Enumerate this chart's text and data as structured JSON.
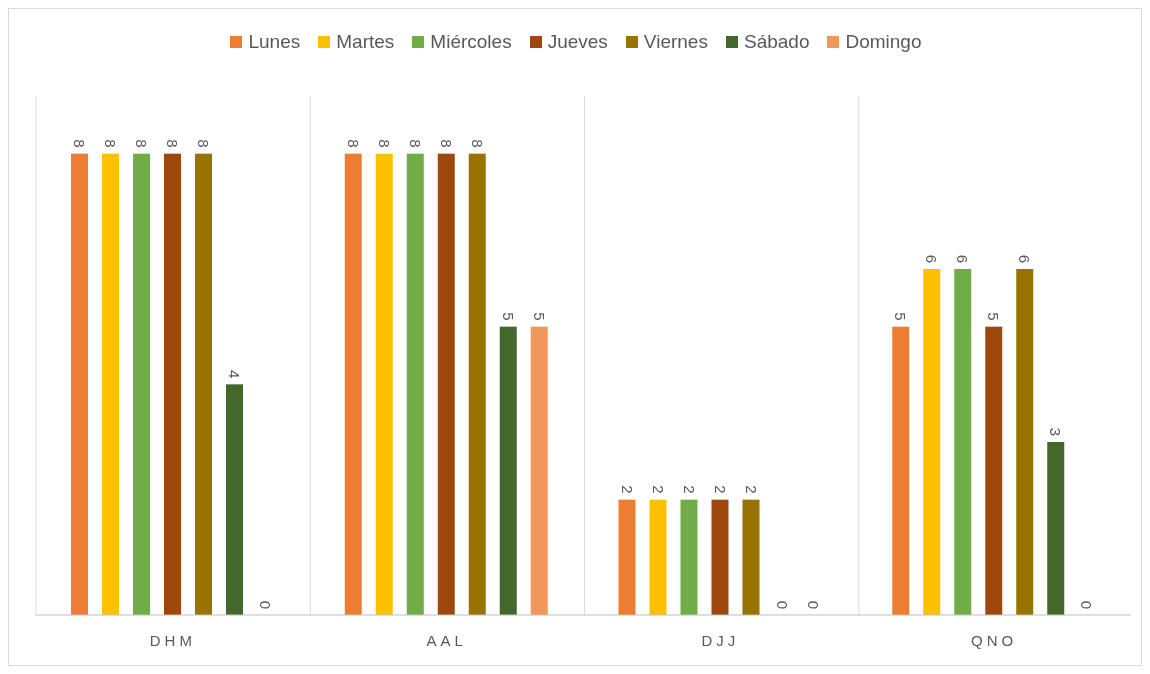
{
  "chart_data": {
    "type": "bar",
    "categories": [
      "DHM",
      "AAL",
      "DJJ",
      "QNO"
    ],
    "series": [
      {
        "name": "Lunes",
        "color": "#ed7d31",
        "values": [
          8,
          8,
          2,
          5
        ]
      },
      {
        "name": "Martes",
        "color": "#ffc000",
        "values": [
          8,
          8,
          2,
          6
        ]
      },
      {
        "name": "Miércoles",
        "color": "#70ad47",
        "values": [
          8,
          8,
          2,
          6
        ]
      },
      {
        "name": "Jueves",
        "color": "#9e480e",
        "values": [
          8,
          8,
          2,
          5
        ]
      },
      {
        "name": "Viernes",
        "color": "#997300",
        "values": [
          8,
          8,
          2,
          6
        ]
      },
      {
        "name": "Sábado",
        "color": "#43682b",
        "values": [
          4,
          5,
          0,
          3
        ]
      },
      {
        "name": "Domingo",
        "color": "#f1975a",
        "values": [
          0,
          5,
          0,
          0
        ]
      }
    ],
    "ylim": [
      0,
      9
    ],
    "data_labels": true,
    "grid": "x",
    "legend": "top"
  }
}
